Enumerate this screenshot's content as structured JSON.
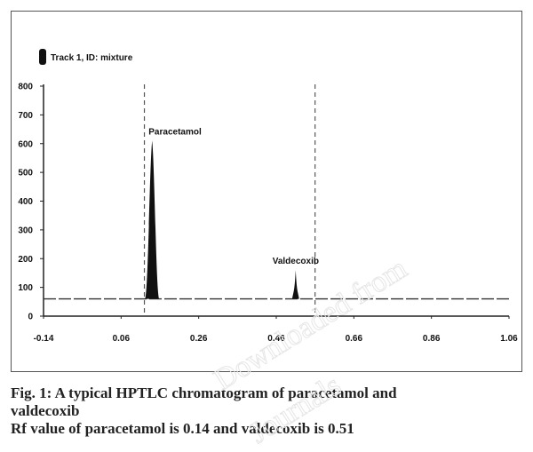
{
  "chart_data": {
    "type": "line",
    "legend": {
      "label": "Track 1, ID: mixture",
      "position": "top-left"
    },
    "x": {
      "ticks": [
        -0.14,
        0.06,
        0.26,
        0.46,
        0.66,
        0.86,
        1.06
      ],
      "tick_labels": [
        "-0.14",
        "0.06",
        "0.26",
        "0.46",
        "0.66",
        "0.86",
        "1.06"
      ],
      "range": [
        -0.14,
        1.06
      ]
    },
    "y": {
      "ticks": [
        0,
        100,
        200,
        300,
        400,
        500,
        600,
        700,
        800
      ],
      "tick_labels": [
        "0",
        "100",
        "200",
        "300",
        "400",
        "500",
        "600",
        "700",
        "800"
      ],
      "range": [
        0,
        800
      ]
    },
    "baseline": 60,
    "front_lines": [
      0.12,
      0.56
    ],
    "peaks": [
      {
        "name": "Paracetamol",
        "rf": 0.14,
        "height": 610,
        "half_width": 0.018
      },
      {
        "name": "Valdecoxib",
        "rf": 0.51,
        "height": 160,
        "half_width": 0.009
      }
    ],
    "grid": false
  },
  "caption": {
    "line1": "Fig. 1: A typical HPTLC chromatogram of paracetamol and",
    "line2": "valdecoxib",
    "line3": "Rf value of paracetamol is 0.14 and valdecoxib is 0.51"
  },
  "watermark": {
    "line1": "Downloaded from",
    "line2": "Journals"
  },
  "colors": {
    "peak": "#111111",
    "axis": "#222222",
    "front": "#555555",
    "baseline": "#333333"
  }
}
